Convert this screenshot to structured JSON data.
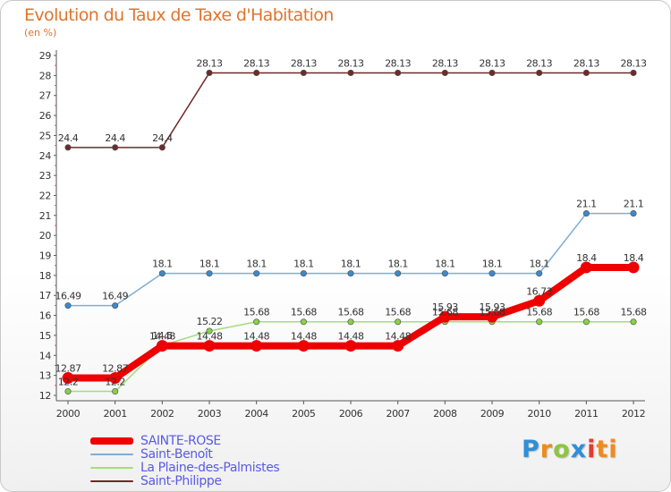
{
  "header": {
    "title": "Evolution du Taux de Taxe d'Habitation",
    "subtitle": "(en %)"
  },
  "logo": {
    "letters": [
      "P",
      "r",
      "o",
      "x",
      "i",
      "ti"
    ],
    "colors": [
      "#2f8fd8",
      "#f08a1c",
      "#8dc63f",
      "#2f8fd8",
      "#e03c31",
      "#f08a1c"
    ]
  },
  "chart_data": {
    "type": "line",
    "title": "Evolution du Taux de Taxe d'Habitation",
    "ylabel": "(en %)",
    "xlabel": "",
    "categories": [
      "2000",
      "2001",
      "2002",
      "2003",
      "2004",
      "2005",
      "2006",
      "2007",
      "2008",
      "2009",
      "2010",
      "2011",
      "2012"
    ],
    "ylim": [
      12,
      29
    ],
    "yticks": [
      12,
      13,
      14,
      15,
      16,
      17,
      18,
      19,
      20,
      21,
      22,
      23,
      24,
      25,
      26,
      27,
      28,
      29
    ],
    "grid": false,
    "legend_position": "bottom-left",
    "series": [
      {
        "name": "Saint-Philippe",
        "color": "#6e2a2a",
        "marker": "#6e2a2a",
        "values": [
          24.4,
          24.4,
          24.4,
          28.13,
          28.13,
          28.13,
          28.13,
          28.13,
          28.13,
          28.13,
          28.13,
          28.13,
          28.13
        ],
        "labels": [
          "24.4",
          "24.4",
          "24.4",
          "28.13",
          "28.13",
          "28.13",
          "28.13",
          "28.13",
          "28.13",
          "28.13",
          "28.13",
          "28.13",
          "28.13"
        ]
      },
      {
        "name": "Saint-Benoît",
        "color": "#7eaed6",
        "marker": "#3a8ad0",
        "values": [
          16.49,
          16.49,
          18.1,
          18.1,
          18.1,
          18.1,
          18.1,
          18.1,
          18.1,
          18.1,
          18.1,
          21.1,
          21.1
        ],
        "labels": [
          "16.49",
          "16.49",
          "18.1",
          "18.1",
          "18.1",
          "18.1",
          "18.1",
          "18.1",
          "18.1",
          "18.1",
          "18.1",
          "21.1",
          "21.1"
        ]
      },
      {
        "name": "La Plaine-des-Palmistes",
        "color": "#a6dc7c",
        "marker": "#86d246",
        "values": [
          12.2,
          12.2,
          14.5,
          15.22,
          15.68,
          15.68,
          15.68,
          15.68,
          15.68,
          15.68,
          15.68,
          15.68,
          15.68
        ],
        "labels": [
          "12.2",
          "12.2",
          "14.5",
          "15.22",
          "15.68",
          "15.68",
          "15.68",
          "15.68",
          "15.68",
          "15.68",
          "15.68",
          "15.68",
          "15.68"
        ]
      },
      {
        "name": "SAINTE-ROSE",
        "color": "#ee0000",
        "marker": "#ee0000",
        "values": [
          12.87,
          12.87,
          14.48,
          14.48,
          14.48,
          14.48,
          14.48,
          14.48,
          15.93,
          15.93,
          16.73,
          18.4,
          18.4
        ],
        "labels": [
          "12.87",
          "12.87",
          "14.48",
          "14.48",
          "14.48",
          "14.48",
          "14.48",
          "14.48",
          "15.93",
          "15.93",
          "16.73",
          "18.4",
          "18.4"
        ]
      }
    ],
    "legend": [
      {
        "name": "SAINTE-ROSE",
        "color": "#ee0000",
        "weight": "thick"
      },
      {
        "name": "Saint-Benoît",
        "color": "#7eaed6",
        "weight": "thin"
      },
      {
        "name": "La Plaine-des-Palmistes",
        "color": "#a6dc7c",
        "weight": "thin"
      },
      {
        "name": "Saint-Philippe",
        "color": "#6e2a2a",
        "weight": "thin"
      }
    ]
  }
}
